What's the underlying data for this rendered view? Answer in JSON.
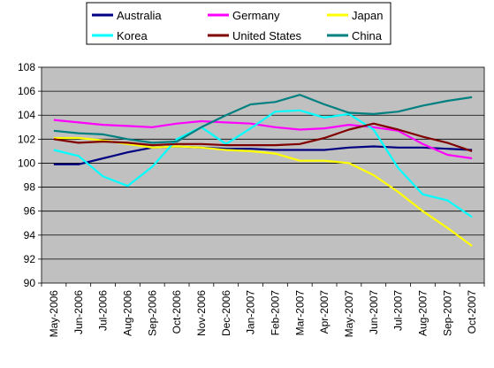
{
  "chart_data": {
    "type": "line",
    "title": "",
    "xlabel": "",
    "ylabel": "",
    "categories": [
      "May-2006",
      "Jun-2006",
      "Jul-2006",
      "Aug-2006",
      "Sep-2006",
      "Oct-2006",
      "Nov-2006",
      "Dec-2006",
      "Jan-2007",
      "Feb-2007",
      "Mar-2007",
      "Apr-2007",
      "May-2007",
      "Jun-2007",
      "Jul-2007",
      "Aug-2007",
      "Sep-2007",
      "Oct-2007"
    ],
    "ylim": [
      90,
      108
    ],
    "yticks": [
      "90",
      "92",
      "94",
      "96",
      "98",
      "100",
      "102",
      "104",
      "106",
      "108"
    ],
    "grid": true,
    "legend_position": "top",
    "series": [
      {
        "name": "Australia",
        "color": "#000080",
        "values": [
          99.9,
          99.9,
          100.4,
          100.9,
          101.3,
          101.4,
          101.3,
          101.2,
          101.2,
          101.1,
          101.1,
          101.1,
          101.3,
          101.4,
          101.3,
          101.3,
          101.2,
          101.1
        ]
      },
      {
        "name": "Germany",
        "color": "#FF00FF",
        "values": [
          103.6,
          103.4,
          103.2,
          103.1,
          103.0,
          103.3,
          103.5,
          103.4,
          103.3,
          103.0,
          102.8,
          102.9,
          103.2,
          103.0,
          102.7,
          101.6,
          100.7,
          100.4
        ]
      },
      {
        "name": "Japan",
        "color": "#FFFF00",
        "values": [
          102.1,
          102.1,
          101.9,
          101.6,
          101.3,
          101.4,
          101.3,
          101.1,
          101.0,
          100.8,
          100.2,
          100.2,
          100.0,
          99.0,
          97.6,
          96.0,
          94.6,
          93.1
        ]
      },
      {
        "name": "Korea",
        "color": "#00FFFF",
        "values": [
          101.1,
          100.6,
          98.9,
          98.1,
          99.7,
          102.0,
          103.0,
          101.6,
          102.9,
          104.3,
          104.4,
          103.8,
          104.1,
          102.8,
          99.6,
          97.4,
          96.9,
          95.5
        ]
      },
      {
        "name": "United States",
        "color": "#800000",
        "values": [
          102.0,
          101.7,
          101.8,
          101.7,
          101.5,
          101.6,
          101.6,
          101.5,
          101.5,
          101.5,
          101.6,
          102.1,
          102.8,
          103.3,
          102.8,
          102.2,
          101.7,
          101.0
        ]
      },
      {
        "name": "China",
        "color": "#008080",
        "values": [
          102.7,
          102.5,
          102.4,
          102.0,
          101.7,
          101.8,
          103.0,
          104.0,
          104.9,
          105.1,
          105.7,
          104.9,
          104.2,
          104.1,
          104.3,
          104.8,
          105.2,
          105.5
        ]
      }
    ]
  }
}
